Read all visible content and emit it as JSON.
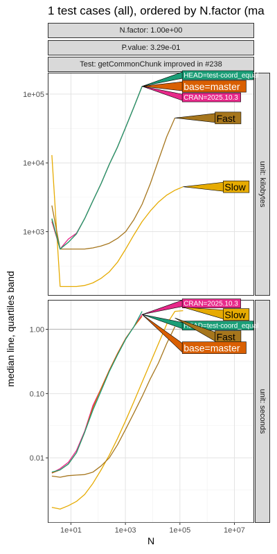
{
  "title": "1 test cases (all), ordered by N.factor (ma",
  "strips": [
    "N.factor: 1.00e+00",
    "P.value: 3.29e-01",
    "Test: getCommonChunk improved in #238"
  ],
  "ylabel": "median line, quartiles band",
  "xlabel": "N",
  "colors": {
    "HEAD": "#1b9e77",
    "base": "#d95f02",
    "CRAN": "#e7298a",
    "Fast": "#a6761d",
    "Slow": "#e6ab02"
  },
  "chart_data": [
    {
      "type": "line",
      "facet": "unit: kilobytes",
      "x_scale": "log10",
      "y_scale": "log10",
      "xlim": [
        1.5,
        50000000.0
      ],
      "ylim": [
        120,
        200000
      ],
      "x_ticks": [
        10,
        1000,
        100000,
        10000000
      ],
      "x_tick_labels": [
        "1e+01",
        "1e+03",
        "1e+05",
        "1e+07"
      ],
      "y_ticks": [
        1000,
        10000,
        100000
      ],
      "y_tick_labels": [
        "1e+03",
        "1e+04",
        "1e+05"
      ],
      "series": [
        {
          "name": "HEAD=test-coord_equal",
          "color_key": "HEAD",
          "x": [
            2,
            4,
            8,
            16,
            32,
            64,
            128,
            256,
            512,
            1024,
            2048,
            4096
          ],
          "y": [
            1550,
            560,
            700,
            930,
            1550,
            2800,
            5000,
            9500,
            17000,
            33000,
            65000,
            130000
          ]
        },
        {
          "name": "base=master",
          "color_key": "base",
          "x": [
            2,
            4,
            8,
            16,
            32,
            64,
            128,
            256,
            512,
            1024,
            2048,
            4096
          ],
          "y": [
            1500,
            560,
            700,
            930,
            1550,
            2800,
            5000,
            9500,
            17000,
            33000,
            65000,
            130000
          ]
        },
        {
          "name": "CRAN=2025.10.3",
          "color_key": "CRAN",
          "x": [
            2,
            4,
            8,
            16,
            32,
            64,
            128,
            256,
            512,
            1024,
            2048,
            4096
          ],
          "y": [
            1400,
            560,
            780,
            950,
            1550,
            2800,
            5000,
            9500,
            17000,
            33000,
            65000,
            130000
          ]
        },
        {
          "name": "Fast",
          "color_key": "Fast",
          "x": [
            2,
            4,
            8,
            16,
            32,
            64,
            128,
            256,
            512,
            1024,
            2048,
            4096,
            8192,
            16384,
            32768,
            65536
          ],
          "y": [
            2400,
            560,
            560,
            560,
            560,
            580,
            620,
            680,
            800,
            1000,
            1500,
            2500,
            5000,
            11000,
            24000,
            45000
          ]
        },
        {
          "name": "Slow",
          "color_key": "Slow",
          "x": [
            2,
            4,
            8,
            16,
            32,
            64,
            128,
            256,
            512,
            1024,
            2048,
            4096,
            8192,
            16384,
            32768,
            65536,
            131072
          ],
          "y": [
            13000,
            160,
            160,
            160,
            165,
            180,
            210,
            260,
            360,
            560,
            900,
            1400,
            2000,
            2700,
            3400,
            4000,
            4500
          ]
        }
      ],
      "labels": [
        {
          "text": "HEAD=test-coord_equal",
          "color_key": "HEAD",
          "x": 4096,
          "y": 130000
        },
        {
          "text": "base=master",
          "color_key": "base",
          "x": 4096,
          "y": 130000
        },
        {
          "text": "CRAN=2025.10.3",
          "color_key": "CRAN",
          "x": 4096,
          "y": 130000
        },
        {
          "text": "Fast",
          "color_key": "Fast",
          "x": 65536,
          "y": 45000
        },
        {
          "text": "Slow",
          "color_key": "Slow",
          "x": 131072,
          "y": 4500
        }
      ]
    },
    {
      "type": "line",
      "facet": "unit: seconds",
      "x_scale": "log10",
      "y_scale": "log10",
      "xlim": [
        1.5,
        50000000.0
      ],
      "ylim": [
        0.001,
        2.8
      ],
      "hline": 1.0,
      "x_ticks": [
        10,
        1000,
        100000,
        10000000
      ],
      "x_tick_labels": [
        "1e+01",
        "1e+03",
        "1e+05",
        "1e+07"
      ],
      "y_ticks": [
        0.01,
        0.1,
        1.0
      ],
      "y_tick_labels": [
        "0.01",
        "0.10",
        "1.00"
      ],
      "series": [
        {
          "name": "HEAD=test-coord_equal",
          "color_key": "HEAD",
          "x": [
            2,
            4,
            8,
            16,
            32,
            64,
            128,
            256,
            512,
            1024,
            2048,
            4096
          ],
          "y": [
            0.006,
            0.0065,
            0.008,
            0.012,
            0.025,
            0.055,
            0.11,
            0.22,
            0.4,
            0.7,
            1.1,
            1.9
          ]
        },
        {
          "name": "base=master",
          "color_key": "base",
          "x": [
            2,
            4,
            8,
            16,
            32,
            64,
            128,
            256,
            512,
            1024,
            2048,
            4096
          ],
          "y": [
            0.0058,
            0.0065,
            0.008,
            0.012,
            0.025,
            0.06,
            0.12,
            0.23,
            0.42,
            0.72,
            1.1,
            1.6
          ]
        },
        {
          "name": "CRAN=2025.10.3",
          "color_key": "CRAN",
          "x": [
            2,
            4,
            8,
            16,
            32,
            64,
            128,
            256,
            512,
            1024,
            2048,
            4096
          ],
          "y": [
            0.0058,
            0.0068,
            0.0085,
            0.013,
            0.026,
            0.065,
            0.12,
            0.23,
            0.42,
            0.72,
            1.1,
            1.7
          ]
        },
        {
          "name": "Fast",
          "color_key": "Fast",
          "x": [
            2,
            4,
            8,
            16,
            32,
            64,
            128,
            256,
            512,
            1024,
            2048,
            4096,
            8192,
            16384,
            32768,
            65536
          ],
          "y": [
            0.0052,
            0.005,
            0.0053,
            0.0054,
            0.0055,
            0.006,
            0.0075,
            0.01,
            0.016,
            0.028,
            0.05,
            0.09,
            0.17,
            0.3,
            0.6,
            1.1
          ]
        },
        {
          "name": "Slow",
          "color_key": "Slow",
          "x": [
            2,
            4,
            8,
            16,
            32,
            64,
            128,
            256,
            512,
            1024,
            2048,
            4096,
            8192,
            16384,
            32768,
            65536,
            131072
          ],
          "y": [
            0.0017,
            0.0016,
            0.0018,
            0.0021,
            0.0027,
            0.004,
            0.0065,
            0.011,
            0.02,
            0.038,
            0.075,
            0.15,
            0.3,
            0.6,
            1.2,
            1.9,
            1.95
          ]
        }
      ],
      "labels": [
        {
          "text": "Slow",
          "color_key": "Slow",
          "x": 131072,
          "y": 2.2
        },
        {
          "text": "Fast",
          "color_key": "Fast",
          "x": 65536,
          "y": 1.5
        },
        {
          "text": "CRAN=2025.10.3",
          "color_key": "CRAN",
          "x": 4096,
          "y": 1.7
        },
        {
          "text": "HEAD=test-coord_equal",
          "color_key": "HEAD",
          "x": 4096,
          "y": 1.7
        },
        {
          "text": "base=master",
          "color_key": "base",
          "x": 4096,
          "y": 1.7
        }
      ]
    }
  ]
}
